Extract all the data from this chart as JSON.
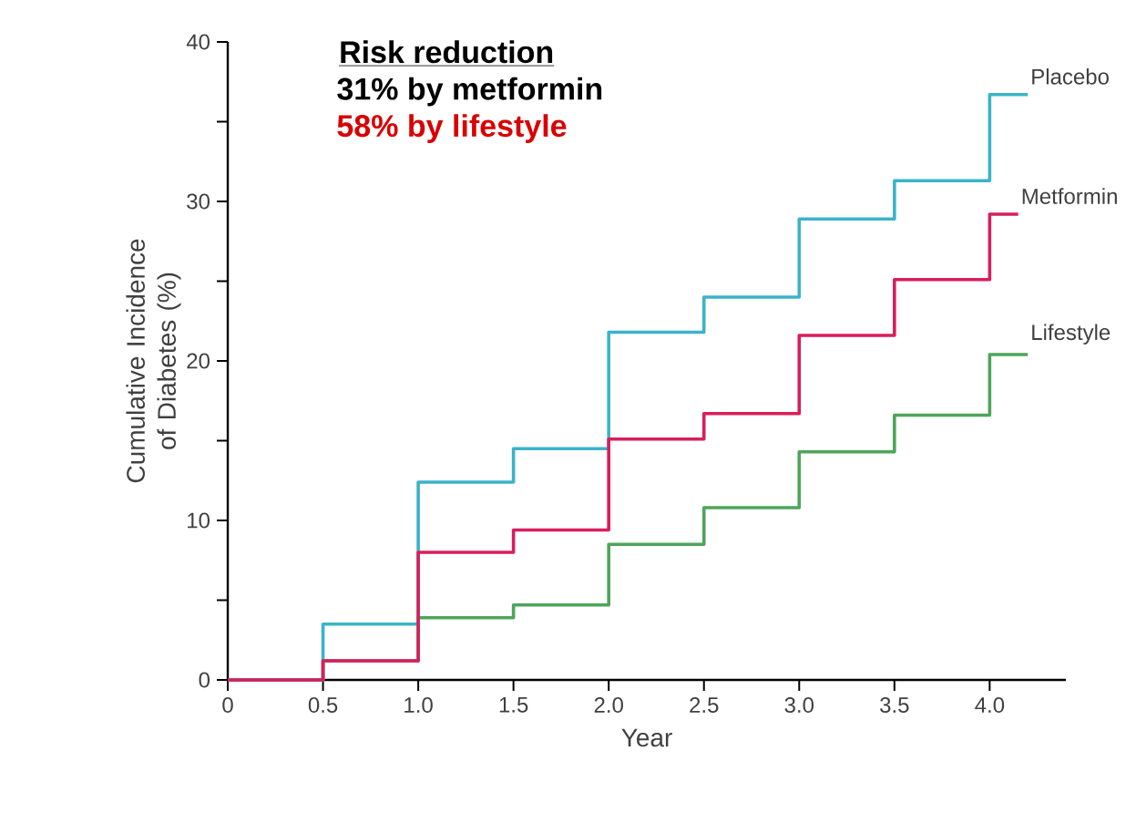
{
  "chart_data": {
    "type": "step",
    "title": "Risk reduction",
    "annotations": [
      "31% by metformin",
      "58% by lifestyle"
    ],
    "xlabel": "Year",
    "ylabel": "Cumulative Incidence of Diabetes (%)",
    "xlim": [
      0,
      4.4
    ],
    "ylim": [
      0,
      40
    ],
    "xticks": [
      0,
      0.5,
      {
        "value": 1,
        "label": "1.0"
      },
      1.5,
      {
        "value": 2,
        "label": "2.0"
      },
      2.5,
      {
        "value": 3,
        "label": "3.0"
      },
      3.5,
      {
        "value": 4,
        "label": "4.0"
      }
    ],
    "yticks": [
      0,
      {
        "value": 5,
        "label": null
      },
      10,
      {
        "value": 15,
        "label": null
      },
      20,
      {
        "value": 25,
        "label": null
      },
      30,
      {
        "value": 35,
        "label": null
      },
      40
    ],
    "series": [
      {
        "name": "Lifestyle",
        "color": "#4ea55a",
        "x": [
          0,
          0.5,
          1,
          1.5,
          2,
          2.5,
          3,
          3.5,
          4,
          4.2
        ],
        "values": [
          0,
          1.2,
          3.9,
          4.7,
          8.5,
          10.8,
          14.3,
          16.6,
          20.4,
          20.4
        ]
      },
      {
        "name": "Placebo",
        "color": "#3bb3c9",
        "x": [
          0,
          0.5,
          1,
          1.5,
          2,
          2.5,
          3,
          3.5,
          4,
          4.2
        ],
        "values": [
          0,
          3.5,
          12.4,
          14.5,
          21.8,
          24.0,
          28.9,
          31.3,
          36.7,
          36.7
        ]
      },
      {
        "name": "Metformin",
        "color": "#d81e5b",
        "x": [
          0,
          0.5,
          1,
          1.5,
          2,
          2.5,
          3,
          3.5,
          4,
          4.15
        ],
        "values": [
          0,
          1.2,
          8.0,
          9.4,
          15.1,
          16.7,
          21.6,
          25.1,
          29.2,
          29.2
        ]
      }
    ]
  }
}
